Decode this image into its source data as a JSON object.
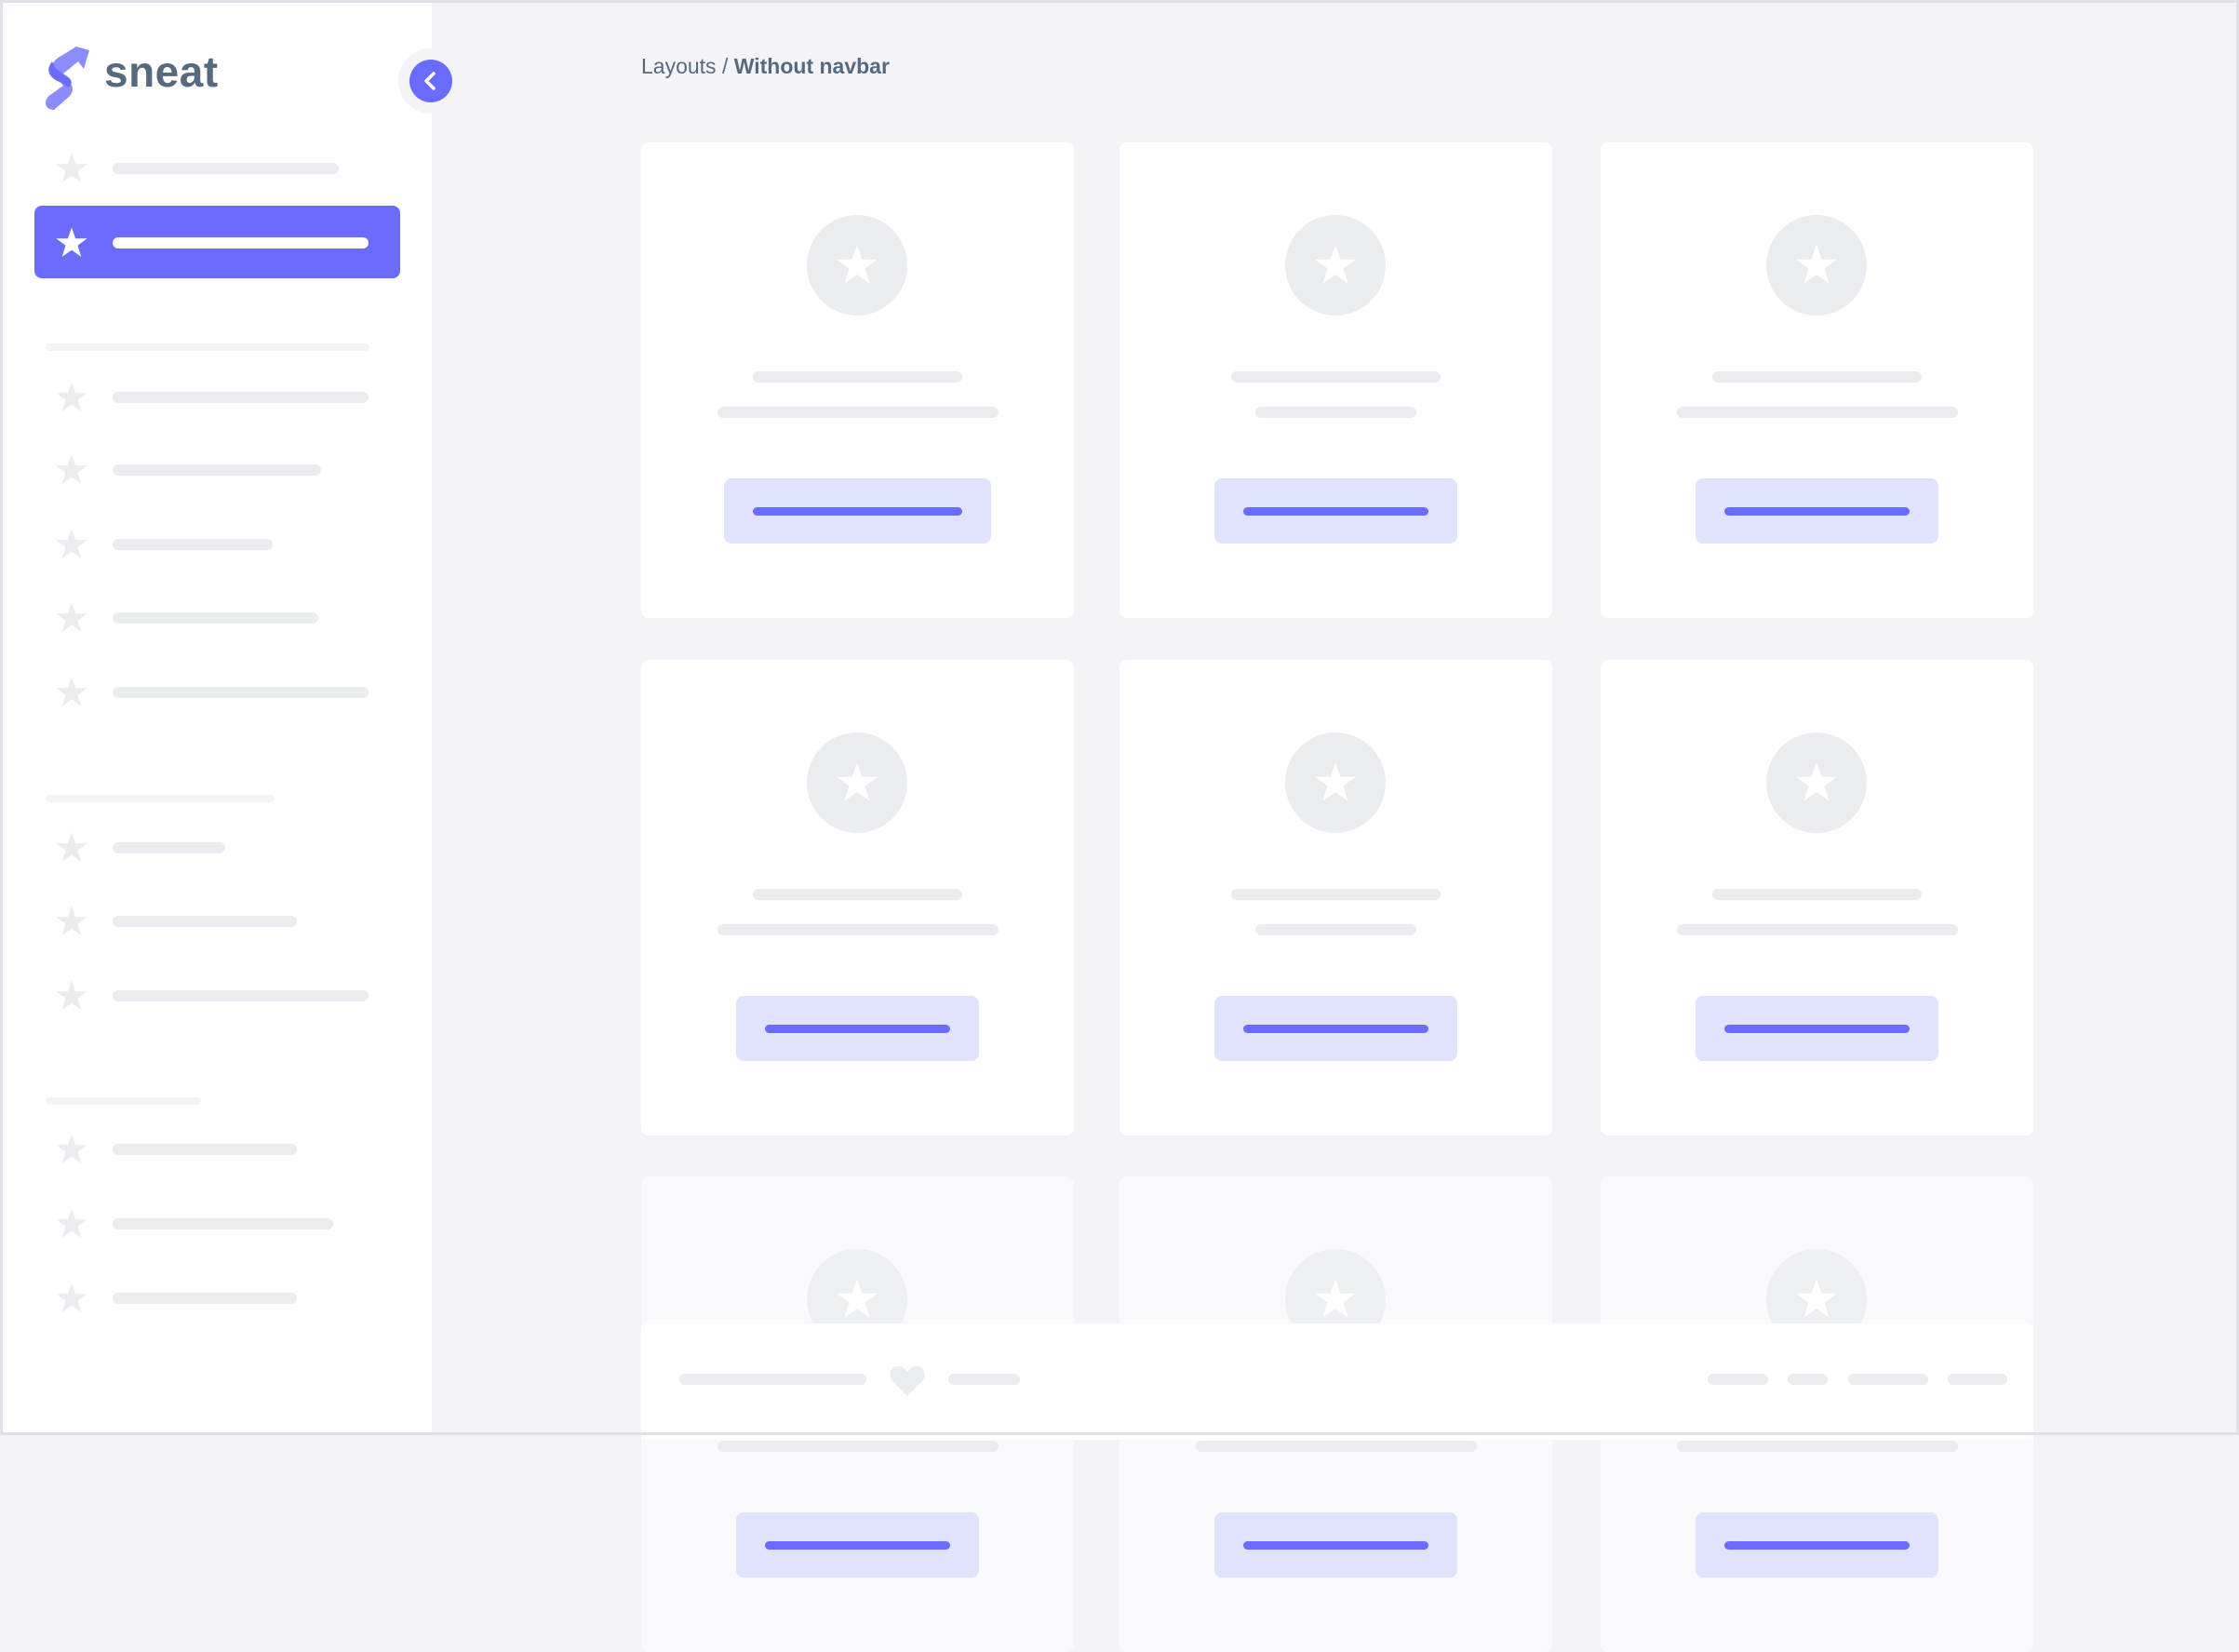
{
  "brand": {
    "name": "sneat",
    "accent": "#696cff",
    "text_color": "#566a7f"
  },
  "breadcrumb": {
    "parent": "Layouts",
    "separator": " / ",
    "current": "Without navbar"
  },
  "sidebar": {
    "collapse_icon": "chevron-left-icon",
    "item_icon": "star-icon",
    "active_index": 1,
    "sections": [
      {
        "items": 2
      },
      {
        "items": 5
      },
      {
        "items": 3
      },
      {
        "items": 3
      }
    ]
  },
  "cards": {
    "rows": 3,
    "columns": 3,
    "icon": "star-icon"
  },
  "footer": {
    "icon": "heart-icon"
  }
}
